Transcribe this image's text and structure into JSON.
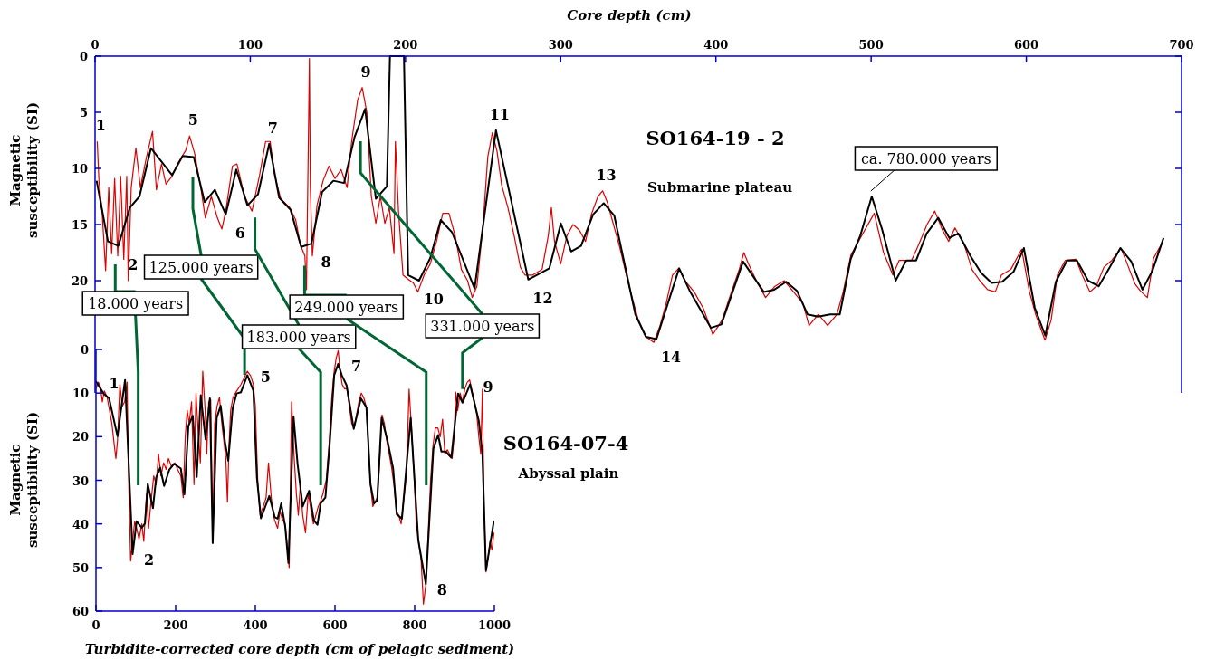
{
  "chart_data": [
    {
      "type": "line",
      "title": "SO164-19 - 2",
      "subtitle": "Submarine plateau",
      "xlabel": "Core depth (cm)",
      "ylabel": "Magnetic susceptibility (SI)",
      "xlim": [
        0,
        700
      ],
      "ylim": [
        30,
        0
      ],
      "xticks": [
        0,
        100,
        200,
        300,
        400,
        500,
        600,
        700
      ],
      "yticks": [
        0,
        5,
        10,
        15,
        20
      ],
      "series": [
        {
          "color": "#dd0000",
          "x": [
            1.4,
            2.5,
            4.5,
            6.8,
            8.8,
            10.7,
            12.6,
            14.6,
            16.5,
            18.5,
            20.4,
            21.4,
            23.3,
            26.3,
            29.2,
            33.1,
            37,
            39.5,
            42.8,
            45.7,
            49.6,
            53.5,
            58.4,
            60.9,
            64.2,
            68.1,
            71,
            74.9,
            78.8,
            81.7,
            84.2,
            88.5,
            91.4,
            96.3,
            101.1,
            106,
            109.9,
            112.8,
            115.7,
            119.6,
            125.5,
            129.3,
            132.3,
            135.2,
            136.2,
            138.1,
            138.7,
            140,
            143,
            146.9,
            150.7,
            154.6,
            158.5,
            162.4,
            165.3,
            169.2,
            172.1,
            175.1,
            178,
            180.9,
            183.8,
            186.7,
            189.6,
            192.6,
            193.5,
            195.5,
            198.4,
            201,
            205,
            208,
            212,
            216,
            220,
            224,
            228,
            232,
            236,
            240,
            243,
            246,
            250,
            253,
            256,
            259,
            262,
            266,
            270,
            274,
            277,
            282,
            288,
            292,
            294,
            296,
            300,
            304,
            308,
            312,
            316,
            320,
            324,
            327,
            330,
            334,
            338,
            344,
            350,
            355,
            360,
            364,
            368,
            372,
            376,
            380,
            386,
            392,
            398,
            404,
            410,
            415,
            418,
            421,
            426,
            432,
            438,
            444,
            450,
            456,
            460,
            466,
            472,
            478,
            482,
            487,
            502,
            508,
            514,
            518,
            526,
            530,
            536,
            541,
            546,
            550,
            554,
            560,
            565,
            570,
            575,
            580,
            584,
            590,
            597,
            602,
            606,
            612,
            616,
            620,
            625,
            632,
            636,
            641,
            645,
            650,
            655,
            661,
            665,
            670,
            674,
            678,
            682,
            686
          ],
          "values": [
            7.6,
            11.1,
            13.8,
            19.1,
            11.7,
            17.6,
            10.9,
            17.8,
            10.7,
            18.1,
            10.7,
            20,
            11.7,
            8.2,
            11.7,
            9,
            6.7,
            11.9,
            9.6,
            11.4,
            10.7,
            9.5,
            8.4,
            7.1,
            8.7,
            11.7,
            14.4,
            12.5,
            14.4,
            15.4,
            13.8,
            9.8,
            9.6,
            12.5,
            13.8,
            10.6,
            7.6,
            7.6,
            10.6,
            12.7,
            13.5,
            14.6,
            16.8,
            17.8,
            20.8,
            0.2,
            11.7,
            17.8,
            13.3,
            11.1,
            9.8,
            10.9,
            10.1,
            11.7,
            7.6,
            3.9,
            2.8,
            5,
            12.5,
            14.9,
            12.5,
            14.9,
            13.5,
            17.6,
            7.6,
            13.8,
            19.5,
            19.8,
            20.2,
            21,
            19.5,
            18.5,
            16.5,
            14,
            14,
            16,
            19,
            20,
            21.5,
            20.5,
            15,
            9,
            6.8,
            8.5,
            11.5,
            13.5,
            16,
            18.8,
            19.5,
            19.5,
            19,
            16,
            13.5,
            16.5,
            18.5,
            16,
            15,
            15.5,
            16.5,
            14,
            12.5,
            12,
            13,
            15,
            17,
            20.5,
            23.5,
            25,
            25.5,
            24,
            22,
            19.5,
            18.9,
            20,
            21,
            22.5,
            24.8,
            23.5,
            21,
            19,
            17.5,
            18.5,
            20,
            21.5,
            20.5,
            20,
            21,
            22,
            24,
            23,
            24,
            23,
            21,
            17.7,
            14,
            17.5,
            19.5,
            18.2,
            18.2,
            17,
            15,
            13.8,
            15.5,
            16.5,
            15.3,
            16.8,
            19,
            20,
            20.8,
            21,
            19.5,
            19,
            17.2,
            21,
            23,
            25.3,
            23.5,
            19.5,
            18.2,
            18.1,
            19.5,
            21,
            20.5,
            18.8,
            18.2,
            17.1,
            18.5,
            20.3,
            21,
            21.5,
            18,
            17
          ]
        },
        {
          "color": "#000000",
          "x": [
            1,
            8.3,
            15,
            22.4,
            28.6,
            36,
            49.6,
            56.4,
            63.6,
            70.6,
            77.2,
            84.2,
            91,
            98.2,
            105,
            112.2,
            118.6,
            126,
            132.8,
            139.4,
            146.3,
            153.6,
            160.4,
            167.2,
            174,
            180.9,
            188,
            190,
            199,
            201.7,
            208.7,
            215.9,
            222.7,
            230,
            244.5,
            258.3,
            279.1,
            292.7,
            300.1,
            306.7,
            313.1,
            320.9,
            327.7,
            334.5,
            348.1,
            354.9,
            361.7,
            376.3,
            383.1,
            396.7,
            403.5,
            417.5,
            430.8,
            437.6,
            445.3,
            452.2,
            459,
            465.8,
            473.6,
            479.8,
            486.8,
            493,
            500.4,
            507,
            515.8,
            522.6,
            529,
            535.8,
            543.2,
            550.4,
            556.2,
            564,
            570.8,
            577.6,
            584.4,
            591.8,
            598.4,
            605.4,
            612.2,
            619,
            626.2,
            632.6,
            639.8,
            646.6,
            653.4,
            660.6,
            667.6,
            674.8,
            681.3,
            688.4
          ],
          "values": [
            11.1,
            16.5,
            16.9,
            13.5,
            12.5,
            8.2,
            10.6,
            8.9,
            9,
            13,
            11.9,
            14.1,
            10.1,
            13.3,
            12.3,
            7.8,
            12.6,
            13.7,
            17,
            16.7,
            12.1,
            11.1,
            11.3,
            7.2,
            4.7,
            12.7,
            11.6,
            0,
            0,
            19.5,
            20,
            18,
            14.6,
            15.7,
            20.7,
            6.6,
            19.9,
            18.9,
            14.9,
            17.4,
            16.9,
            14.1,
            13.1,
            14.2,
            23,
            25,
            25.2,
            18.9,
            20.9,
            24.2,
            23.9,
            18.3,
            21,
            20.8,
            20.1,
            20.9,
            23,
            23.2,
            23,
            23,
            18.1,
            16,
            12.5,
            15.4,
            20,
            18.2,
            18.2,
            15.8,
            14.4,
            16.2,
            15.8,
            17.8,
            19.3,
            20.2,
            20.1,
            19.2,
            17.1,
            22.4,
            24.9,
            20.1,
            18.2,
            18.2,
            20,
            20.5,
            18.9,
            17.1,
            18.3,
            20.8,
            19.1,
            16.2
          ]
        }
      ],
      "ref_lines": [
        {
          "axis": "x",
          "value": 13,
          "color": "#006633"
        },
        {
          "axis": "x",
          "value": 63,
          "color": "#006633"
        },
        {
          "axis": "x",
          "value": 103,
          "color": "#006633"
        },
        {
          "axis": "x",
          "value": 135,
          "color": "#006633"
        },
        {
          "axis": "x",
          "value": 171,
          "color": "#006633"
        }
      ],
      "annotations": [
        {
          "text": "1",
          "x": 1.4,
          "y": 7.6
        },
        {
          "text": "2",
          "x": 15,
          "y": 16.9
        },
        {
          "text": "5",
          "x": 60.9,
          "y": 7.1
        },
        {
          "text": "6",
          "x": 84.2,
          "y": 14.1
        },
        {
          "text": "7",
          "x": 112.2,
          "y": 7.8
        },
        {
          "text": "8",
          "x": 139.4,
          "y": 16.7
        },
        {
          "text": "9",
          "x": 172.1,
          "y": 2.8
        },
        {
          "text": "10",
          "x": 208.7,
          "y": 20
        },
        {
          "text": "11",
          "x": 258.3,
          "y": 6.6
        },
        {
          "text": "12",
          "x": 279.1,
          "y": 19.9
        },
        {
          "text": "13",
          "x": 327,
          "y": 12
        },
        {
          "text": "14",
          "x": 361.7,
          "y": 25.2
        },
        {
          "text": "ca. 780.000 years",
          "x": 500.4,
          "y": 12.5
        }
      ]
    },
    {
      "type": "line",
      "title": "SO164-07-4",
      "xlabel": "Turbidite-corrected core depth (cm of pelagic sediment)",
      "ylabel": "Magnetic susceptibility (SI)",
      "xlim": [
        0,
        1000
      ],
      "ylim": [
        60,
        0
      ],
      "xticks": [
        0,
        200,
        400,
        600,
        800,
        1000
      ],
      "yticks": [
        0,
        10,
        20,
        30,
        40,
        50,
        60
      ],
      "series": [
        {
          "color": "#dd0000",
          "x": [
            0,
            6,
            11,
            16,
            21,
            28,
            34,
            40,
            46,
            50,
            54,
            60,
            66,
            72,
            78,
            82,
            87,
            92,
            97,
            102,
            108,
            115,
            120,
            127,
            132,
            138,
            145,
            151,
            157,
            163,
            170,
            176,
            182,
            190,
            198,
            205,
            213,
            219,
            224,
            229,
            234,
            240,
            246,
            251,
            256,
            262,
            268,
            274,
            278,
            283,
            288,
            293,
            298,
            304,
            310,
            316,
            321,
            326,
            330,
            334,
            338,
            344,
            350,
            357,
            364,
            372,
            380,
            388,
            395,
            400,
            406,
            412,
            420,
            427,
            433,
            440,
            448,
            456,
            462,
            468,
            475,
            480,
            485,
            491,
            497,
            503,
            508,
            513,
            519,
            526,
            533,
            540,
            546,
            552,
            558,
            563,
            570,
            578,
            585,
            592,
            598,
            603,
            608,
            613,
            618,
            624,
            630,
            636,
            642,
            648,
            654,
            660,
            666,
            672,
            678,
            684,
            689,
            695,
            700,
            706,
            712,
            718,
            724,
            730,
            736,
            742,
            748,
            754,
            760,
            766,
            772,
            778,
            783,
            786,
            792,
            798,
            804,
            810,
            816,
            822,
            828,
            834,
            840,
            846,
            852,
            858,
            864,
            870,
            876,
            882,
            888,
            894,
            899,
            903,
            908,
            914,
            920,
            926,
            932,
            938,
            944,
            950,
            956,
            961,
            966,
            970,
            974,
            979,
            984,
            989,
            994,
            999
          ],
          "values": [
            9,
            7.5,
            8.5,
            12,
            9.5,
            11,
            14,
            17,
            22,
            25,
            21,
            8,
            13,
            12,
            7.5,
            30,
            48.5,
            44,
            39.5,
            41,
            43.5,
            40,
            44,
            33,
            41,
            35,
            29,
            31,
            24,
            29,
            26,
            27.5,
            25,
            27,
            26,
            27.5,
            29,
            34,
            20,
            14,
            17,
            12,
            31,
            10,
            18,
            26,
            5,
            14,
            24,
            12,
            11.5,
            44,
            17,
            13,
            11,
            17,
            21,
            25,
            35,
            22,
            14,
            11,
            10,
            9,
            8,
            6.5,
            5,
            6,
            8,
            13,
            30,
            38,
            36,
            34,
            26,
            34,
            39,
            41,
            37,
            39,
            40,
            45,
            50,
            12,
            24,
            33,
            38,
            31,
            38,
            42,
            33,
            37,
            40,
            38,
            36,
            35,
            33,
            30,
            22,
            11,
            5,
            2,
            0.3,
            5,
            8,
            9,
            9,
            13,
            17,
            18,
            15,
            12,
            10,
            11,
            13,
            22,
            31,
            36,
            35,
            34,
            26,
            15,
            17,
            21,
            24,
            27,
            31,
            37,
            38,
            40,
            35,
            30,
            18,
            9.1,
            18,
            28,
            40,
            44,
            48,
            58.4,
            54,
            42,
            30,
            22,
            18,
            18,
            20,
            16,
            24,
            23,
            24,
            25,
            20,
            9.8,
            14,
            10,
            12,
            9,
            7.5,
            7,
            9.5,
            12,
            15,
            20,
            24,
            9.1,
            36,
            51,
            48,
            44,
            46,
            42
          ]
        },
        {
          "color": "#000000",
          "x": [
            0,
            19,
            33,
            54,
            73,
            92,
            102,
            115,
            123,
            130,
            143,
            151,
            161,
            171,
            184,
            196,
            213,
            222,
            232,
            243,
            253,
            263,
            275,
            286,
            293,
            303,
            313,
            324,
            332,
            343,
            353,
            364,
            380,
            395,
            404,
            414,
            435,
            449,
            456,
            465,
            475,
            483,
            496,
            506,
            519,
            535,
            547,
            556,
            564,
            576,
            587,
            598,
            608,
            617,
            629,
            647,
            665,
            679,
            689,
            698,
            706,
            717,
            732,
            746,
            755,
            768,
            790,
            809,
            828,
            847,
            859,
            867,
            878,
            892,
            909,
            920,
            939,
            961,
            970,
            979,
            999
          ],
          "values": [
            7.3,
            10.1,
            11.2,
            19.9,
            7,
            46.9,
            39.4,
            40.9,
            39.9,
            30.8,
            36.4,
            29.4,
            27.1,
            31.3,
            27.6,
            26.2,
            27.3,
            33.2,
            17.5,
            15.2,
            29.2,
            10.5,
            20.6,
            11.2,
            44.4,
            15.7,
            12.9,
            21.3,
            25.5,
            13.6,
            10.1,
            9.8,
            5.9,
            9.4,
            29.4,
            38.7,
            33.6,
            38.5,
            38.8,
            35.3,
            40.6,
            49,
            15.4,
            26.2,
            36,
            32.4,
            39.2,
            40.2,
            35.3,
            33.9,
            21.3,
            5.9,
            3.3,
            5.9,
            8.2,
            18.2,
            11.2,
            13.3,
            30.8,
            35.3,
            34.6,
            15.7,
            21,
            27.3,
            37.8,
            38.8,
            15.7,
            43.7,
            53.8,
            22.7,
            19.6,
            23.4,
            23.4,
            24.8,
            10.1,
            12.2,
            8,
            16.4,
            23.8,
            50.7,
            39.2
          ]
        }
      ],
      "ref_lines": [
        {
          "axis": "x",
          "value": 106,
          "label": "18.000 years",
          "color": "#006633"
        },
        {
          "axis": "x",
          "value": 373,
          "label": "125.000 years",
          "color": "#006633"
        },
        {
          "axis": "x",
          "value": 564,
          "label": "183.000 years",
          "color": "#006633"
        },
        {
          "axis": "x",
          "value": 829,
          "label": "249.000 years",
          "color": "#006633"
        },
        {
          "axis": "x",
          "value": 920,
          "label": "331.000 years",
          "color": "#006633"
        }
      ],
      "annotations": [
        "Abyssal plain",
        {
          "text": "1",
          "x": 0,
          "y": 7.3
        },
        {
          "text": "2",
          "x": 92,
          "y": 46.9
        },
        {
          "text": "5",
          "x": 380,
          "y": 5.9
        },
        {
          "text": "7",
          "x": 608,
          "y": 3.3
        },
        {
          "text": "8",
          "x": 828,
          "y": 53.8
        },
        {
          "text": "9",
          "x": 939,
          "y": 8
        }
      ]
    }
  ]
}
